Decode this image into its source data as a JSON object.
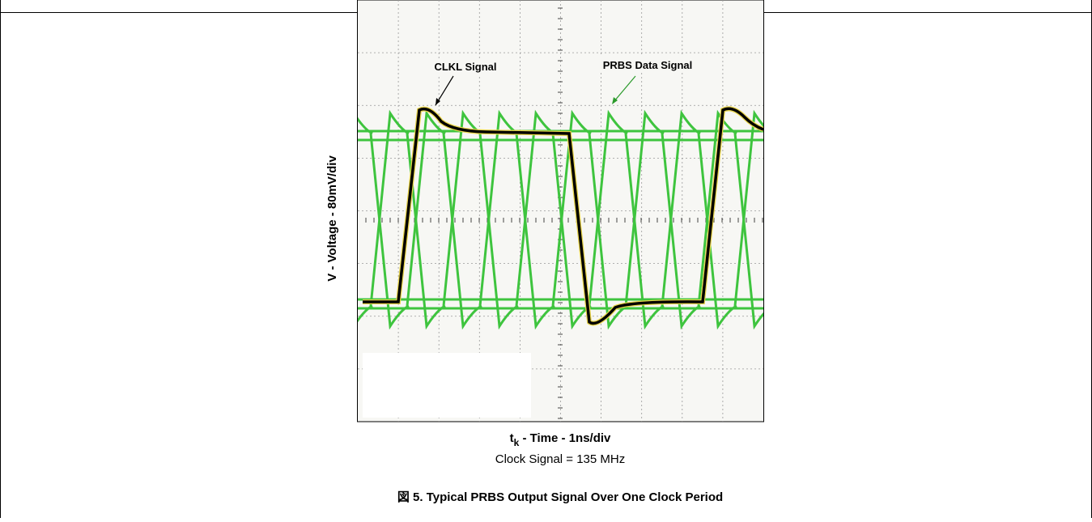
{
  "figure": {
    "annotations": {
      "clock_label": "CLKL Signal",
      "data_label": "PRBS Data Signal"
    },
    "y_label": "V - Voltage - 80mV/div",
    "x_label": {
      "main": "t",
      "sub": "k",
      "rest": " - Time - 1ns/div"
    },
    "note": "Clock Signal = 135 MHz",
    "caption": "図 5. Typical PRBS Output Signal Over One Clock Period"
  }
}
